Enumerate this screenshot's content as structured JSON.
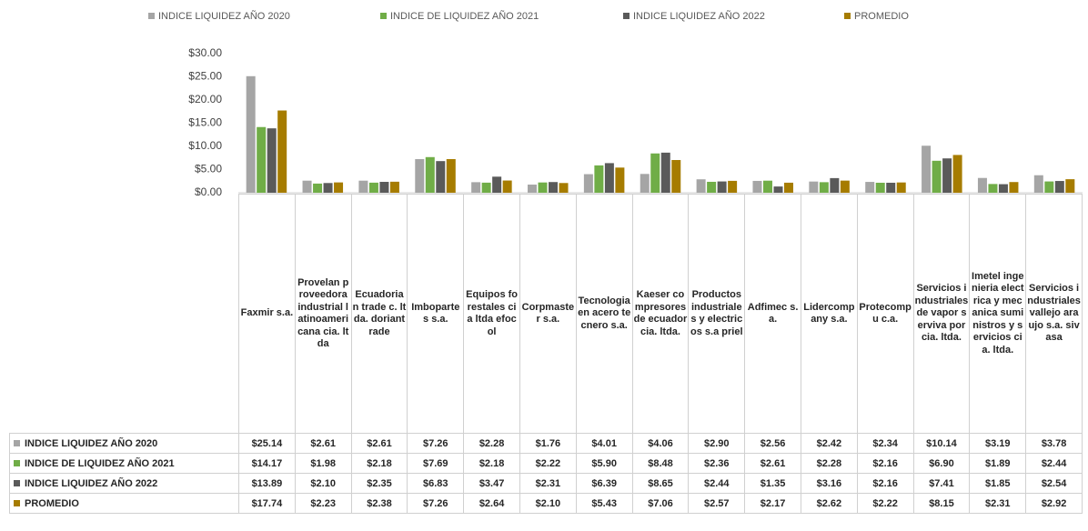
{
  "chart_data": {
    "type": "bar",
    "categories": [
      "Faxmir s.a.",
      "Provelan proveedora industrial latinoamericana cia. ltda",
      "Ecuadorian trade c. ltda. doriantrade",
      "Imbopartes s.a.",
      "Equipos forestales cia ltda efocol",
      "Corpmaster s.a.",
      "Tecnologia en acero tecnero s.a.",
      "Kaeser compresores de ecuador cia. ltda.",
      "Productos industriales y electricos s.a priel",
      "Adfimec s.a.",
      "Lidercompany s.a.",
      "Protecompu c.a.",
      "Servicios industriales de vapor serviva por cia. ltda.",
      "Imetel ingenieria electrica y mecanica suministros y servicios cia. ltda.",
      "Servicios industriales vallejo araujo s.a. sivasa"
    ],
    "series": [
      {
        "name": "INDICE LIQUIDEZ AÑO 2020",
        "color": "#a5a5a5",
        "values": [
          25.14,
          2.61,
          2.61,
          7.26,
          2.28,
          1.76,
          4.01,
          4.06,
          2.9,
          2.56,
          2.42,
          2.34,
          10.14,
          3.19,
          3.78
        ],
        "value_labels": [
          "$25.14",
          "$2.61",
          "$2.61",
          "$7.26",
          "$2.28",
          "$1.76",
          "$4.01",
          "$4.06",
          "$2.90",
          "$2.56",
          "$2.42",
          "$2.34",
          "$10.14",
          "$3.19",
          "$3.78"
        ]
      },
      {
        "name": "INDICE DE LIQUIDEZ AÑO 2021",
        "color": "#70ad47",
        "values": [
          14.17,
          1.98,
          2.18,
          7.69,
          2.18,
          2.22,
          5.9,
          8.48,
          2.36,
          2.61,
          2.28,
          2.16,
          6.9,
          1.89,
          2.44
        ],
        "value_labels": [
          "$14.17",
          "$1.98",
          "$2.18",
          "$7.69",
          "$2.18",
          "$2.22",
          "$5.90",
          "$8.48",
          "$2.36",
          "$2.61",
          "$2.28",
          "$2.16",
          "$6.90",
          "$1.89",
          "$2.44"
        ]
      },
      {
        "name": "INDICE LIQUIDEZ AÑO 2022",
        "color": "#5a5a5a",
        "values": [
          13.89,
          2.1,
          2.35,
          6.83,
          3.47,
          2.31,
          6.39,
          8.65,
          2.44,
          1.35,
          3.16,
          2.16,
          7.41,
          1.85,
          2.54
        ],
        "value_labels": [
          "$13.89",
          "$2.10",
          "$2.35",
          "$6.83",
          "$3.47",
          "$2.31",
          "$6.39",
          "$8.65",
          "$2.44",
          "$1.35",
          "$3.16",
          "$2.16",
          "$7.41",
          "$1.85",
          "$2.54"
        ]
      },
      {
        "name": "PROMEDIO",
        "color": "#a67c00",
        "values": [
          17.74,
          2.23,
          2.38,
          7.26,
          2.64,
          2.1,
          5.43,
          7.06,
          2.57,
          2.17,
          2.62,
          2.22,
          8.15,
          2.31,
          2.92
        ],
        "value_labels": [
          "$17.74",
          "$2.23",
          "$2.38",
          "$7.26",
          "$2.64",
          "$2.10",
          "$5.43",
          "$7.06",
          "$2.57",
          "$2.17",
          "$2.62",
          "$2.22",
          "$8.15",
          "$2.31",
          "$2.92"
        ]
      }
    ],
    "ylim": [
      0,
      30
    ],
    "yticks": [
      {
        "value": 0,
        "label": "$0.00"
      },
      {
        "value": 5,
        "label": "$5.00"
      },
      {
        "value": 10,
        "label": "$10.00"
      },
      {
        "value": 15,
        "label": "$15.00"
      },
      {
        "value": 20,
        "label": "$20.00"
      },
      {
        "value": 25,
        "label": "$25.00"
      },
      {
        "value": 30,
        "label": "$30.00"
      }
    ],
    "grid": false,
    "legend": "top"
  }
}
